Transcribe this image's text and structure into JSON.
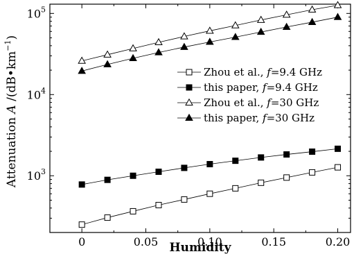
{
  "chart_data": {
    "type": "line",
    "title": "",
    "xlabel": "Humidity",
    "ylabel": "Attenuation A /(dB•km⁻¹)",
    "ylabel_parts": {
      "prefix": "Attenuation ",
      "var": "A",
      "unit_open": " /(dB•km",
      "unit_exp": "−1",
      "unit_close": ")"
    },
    "yscale": "log",
    "xlim": [
      -0.025,
      0.21
    ],
    "ylim": [
      200,
      130000
    ],
    "xticks": [
      0,
      0.05,
      0.1,
      0.15,
      0.2
    ],
    "xtick_labels": [
      "0",
      "0.05",
      "0.10",
      "0.15",
      "0.20"
    ],
    "yticks": [
      1000,
      10000,
      100000
    ],
    "ytick_labels": [
      {
        "base": "10",
        "exp": "3"
      },
      {
        "base": "10",
        "exp": "4"
      },
      {
        "base": "10",
        "exp": "5"
      }
    ],
    "grid": false,
    "legend_position": "center-right",
    "x": [
      0,
      0.02,
      0.04,
      0.06,
      0.08,
      0.1,
      0.12,
      0.14,
      0.16,
      0.18,
      0.2
    ],
    "series": [
      {
        "label": {
          "pre": "Zhou et al., ",
          "f": "f",
          "post": "=9.4 GHz"
        },
        "marker": "square-open",
        "values": [
          250,
          305,
          365,
          435,
          510,
          600,
          700,
          820,
          950,
          1100,
          1270
        ]
      },
      {
        "label": {
          "pre": "this paper, ",
          "f": "f",
          "post": "=9.4 GHz"
        },
        "marker": "square-filled",
        "values": [
          780,
          890,
          1000,
          1120,
          1250,
          1390,
          1530,
          1680,
          1830,
          1980,
          2150
        ]
      },
      {
        "label": {
          "pre": "Zhou et al., ",
          "f": "f",
          "post": "=30 GHz"
        },
        "marker": "triangle-open",
        "values": [
          26000,
          31000,
          37000,
          44000,
          52000,
          61000,
          71000,
          83000,
          96000,
          111000,
          126000
        ]
      },
      {
        "label": {
          "pre": "this paper, ",
          "f": "f",
          "post": "=30 GHz"
        },
        "marker": "triangle-filled",
        "values": [
          19500,
          23500,
          28000,
          33000,
          38500,
          44500,
          51000,
          59000,
          68000,
          78000,
          90000
        ]
      }
    ]
  }
}
